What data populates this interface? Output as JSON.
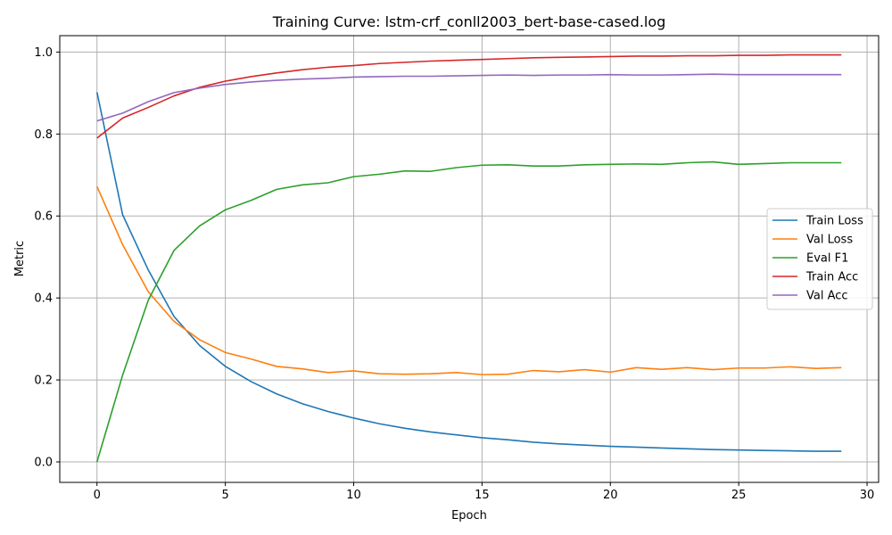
{
  "chart_data": {
    "type": "line",
    "title": "Training Curve: lstm-crf_conll2003_bert-base-cased.log",
    "xlabel": "Epoch",
    "ylabel": "Metric",
    "xlim": [
      -1.45,
      30.45
    ],
    "ylim": [
      -0.05,
      1.04
    ],
    "xticks": [
      0,
      5,
      10,
      15,
      20,
      25,
      30
    ],
    "yticks": [
      0.0,
      0.2,
      0.4,
      0.6,
      0.8,
      1.0
    ],
    "grid": true,
    "legend_position": "center-right",
    "x": [
      0,
      1,
      2,
      3,
      4,
      5,
      6,
      7,
      8,
      9,
      10,
      11,
      12,
      13,
      14,
      15,
      16,
      17,
      18,
      19,
      20,
      21,
      22,
      23,
      24,
      25,
      26,
      27,
      28,
      29
    ],
    "series": [
      {
        "name": "Train Loss",
        "color": "#1f77b4",
        "values": [
          0.902,
          0.603,
          0.468,
          0.355,
          0.284,
          0.233,
          0.196,
          0.166,
          0.142,
          0.123,
          0.107,
          0.093,
          0.082,
          0.073,
          0.066,
          0.059,
          0.054,
          0.048,
          0.044,
          0.041,
          0.038,
          0.036,
          0.034,
          0.032,
          0.03,
          0.029,
          0.028,
          0.027,
          0.026,
          0.026
        ]
      },
      {
        "name": "Val Loss",
        "color": "#ff7f0e",
        "values": [
          0.672,
          0.53,
          0.415,
          0.343,
          0.298,
          0.267,
          0.251,
          0.233,
          0.227,
          0.218,
          0.222,
          0.215,
          0.214,
          0.215,
          0.218,
          0.213,
          0.214,
          0.223,
          0.22,
          0.225,
          0.219,
          0.23,
          0.226,
          0.23,
          0.225,
          0.229,
          0.229,
          0.232,
          0.228,
          0.23
        ]
      },
      {
        "name": "Eval F1",
        "color": "#2ca02c",
        "values": [
          0.0,
          0.212,
          0.395,
          0.516,
          0.576,
          0.615,
          0.638,
          0.665,
          0.676,
          0.681,
          0.696,
          0.702,
          0.71,
          0.709,
          0.718,
          0.724,
          0.725,
          0.722,
          0.722,
          0.725,
          0.726,
          0.727,
          0.726,
          0.73,
          0.732,
          0.726,
          0.728,
          0.73,
          0.73,
          0.73
        ]
      },
      {
        "name": "Train Acc",
        "color": "#d62728",
        "values": [
          0.79,
          0.839,
          0.865,
          0.893,
          0.914,
          0.929,
          0.94,
          0.949,
          0.957,
          0.963,
          0.967,
          0.972,
          0.975,
          0.978,
          0.98,
          0.982,
          0.984,
          0.986,
          0.987,
          0.988,
          0.989,
          0.99,
          0.99,
          0.991,
          0.991,
          0.992,
          0.992,
          0.993,
          0.993,
          0.993
        ]
      },
      {
        "name": "Val Acc",
        "color": "#9467bd",
        "values": [
          0.832,
          0.851,
          0.879,
          0.901,
          0.912,
          0.921,
          0.927,
          0.931,
          0.934,
          0.936,
          0.939,
          0.94,
          0.941,
          0.941,
          0.942,
          0.943,
          0.944,
          0.943,
          0.944,
          0.944,
          0.945,
          0.944,
          0.944,
          0.945,
          0.946,
          0.945,
          0.945,
          0.945,
          0.945,
          0.945
        ]
      }
    ]
  }
}
